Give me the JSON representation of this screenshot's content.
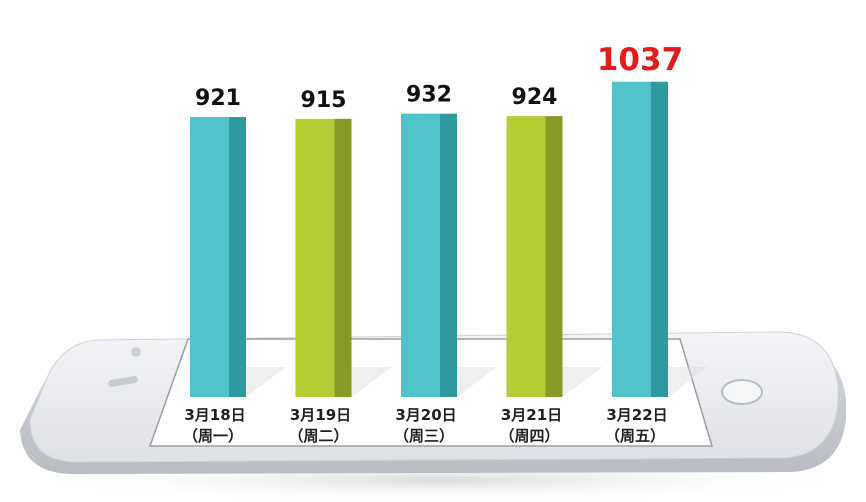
{
  "chart_data": {
    "type": "bar",
    "categories": [
      "3月18日",
      "3月19日",
      "3月20日",
      "3月21日",
      "3月22日"
    ],
    "subcategories": [
      "（周一）",
      "（周二）",
      "（周三）",
      "（周四）",
      "（周五）"
    ],
    "values": [
      921,
      915,
      932,
      924,
      1037
    ],
    "value_labels": [
      "921",
      "915",
      "932",
      "924",
      "1037"
    ],
    "title": "",
    "xlabel": "",
    "ylabel": "",
    "grid": false,
    "legend": "none",
    "bar_colors": [
      "#4fc3c9",
      "#b6cc34",
      "#4fc3c9",
      "#b6cc34",
      "#4fc3c9"
    ],
    "bar_side_colors": [
      "#2e9aa0",
      "#879a24",
      "#2e9aa0",
      "#879a24",
      "#2e9aa0"
    ],
    "value_label_colors": [
      "#111111",
      "#111111",
      "#111111",
      "#111111",
      "#e31b1b"
    ],
    "background_illustration": "smartphone-lying-flat"
  }
}
